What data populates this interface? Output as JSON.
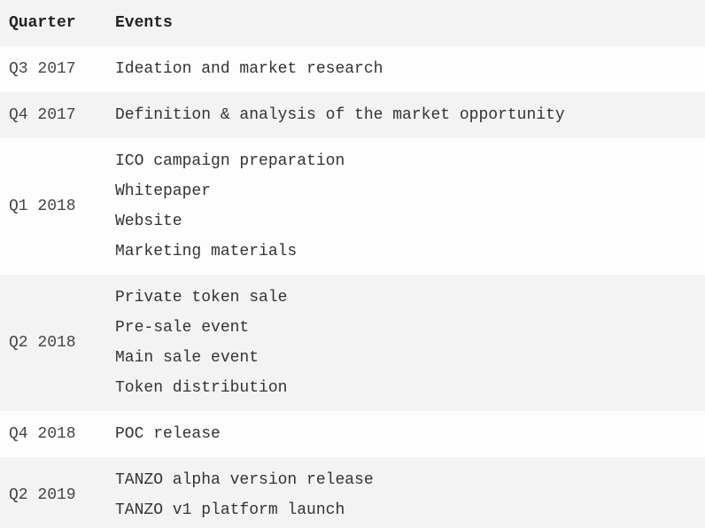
{
  "table": {
    "headers": {
      "quarter": "Quarter",
      "events": "Events"
    },
    "rows": [
      {
        "quarter": "Q3 2017",
        "events": [
          "Ideation and market research"
        ]
      },
      {
        "quarter": "Q4 2017",
        "events": [
          "Definition & analysis of the market opportunity"
        ]
      },
      {
        "quarter": "Q1 2018",
        "events": [
          "ICO campaign preparation",
          "Whitepaper",
          "Website",
          "Marketing materials"
        ]
      },
      {
        "quarter": "Q2 2018",
        "events": [
          "Private token sale",
          "Pre-sale event",
          "Main sale event",
          "Token distribution"
        ]
      },
      {
        "quarter": "Q4 2018",
        "events": [
          "POC release"
        ]
      },
      {
        "quarter": "Q2 2019",
        "events": [
          "TANZO alpha version release",
          "TANZO v1 platform launch"
        ]
      }
    ]
  }
}
